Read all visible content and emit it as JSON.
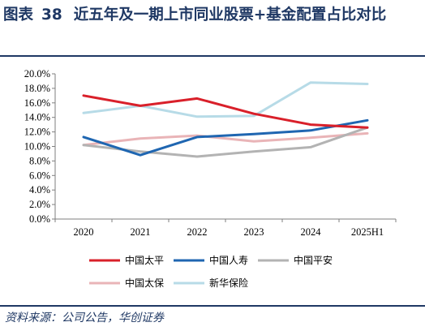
{
  "figure": {
    "label": "图表",
    "number": "38",
    "title": "近五年及一期上市同业股票+基金配置占比对比",
    "source": "资料来源：公司公告，华创证券"
  },
  "chart_data": {
    "type": "line",
    "x": [
      "2020",
      "2021",
      "2022",
      "2023",
      "2024",
      "2025H1"
    ],
    "y_ticks": [
      "0.0%",
      "2.0%",
      "4.0%",
      "6.0%",
      "8.0%",
      "10.0%",
      "12.0%",
      "14.0%",
      "16.0%",
      "18.0%",
      "20.0%"
    ],
    "ylim": [
      0,
      20
    ],
    "grid": false,
    "legend_position": "bottom",
    "series": [
      {
        "name": "中国太平",
        "color": "#d9202a",
        "values": [
          17.0,
          15.6,
          16.6,
          14.5,
          13.0,
          12.6
        ]
      },
      {
        "name": "中国人寿",
        "color": "#1f66b1",
        "values": [
          11.3,
          8.8,
          11.3,
          11.7,
          12.2,
          13.6
        ]
      },
      {
        "name": "中国平安",
        "color": "#b3b3b3",
        "values": [
          10.2,
          9.3,
          8.6,
          9.3,
          9.9,
          12.6
        ]
      },
      {
        "name": "中国太保",
        "color": "#e9b4b7",
        "values": [
          10.2,
          11.1,
          11.5,
          10.7,
          11.2,
          11.8
        ]
      },
      {
        "name": "新华保险",
        "color": "#b7dbe7",
        "values": [
          14.6,
          15.6,
          14.1,
          14.2,
          18.8,
          18.6
        ]
      }
    ]
  }
}
